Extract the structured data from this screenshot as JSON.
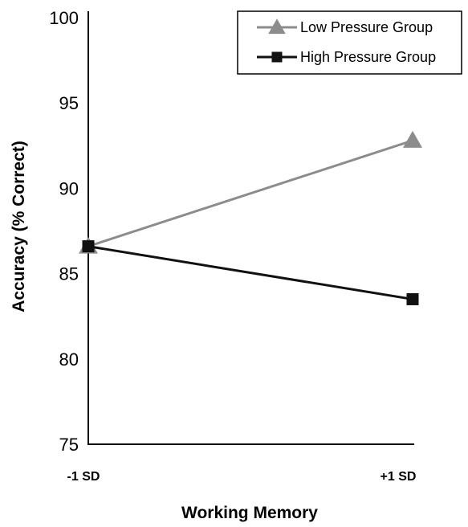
{
  "chart_data": {
    "type": "line",
    "categories": [
      "-1 SD",
      "+1 SD"
    ],
    "series": [
      {
        "name": "Low Pressure Group",
        "values": [
          86.6,
          92.8
        ],
        "color": "#8c8c8c",
        "marker": "triangle"
      },
      {
        "name": "High Pressure Group",
        "values": [
          86.6,
          83.5
        ],
        "color": "#111111",
        "marker": "square"
      }
    ],
    "xlabel": "Working Memory",
    "ylabel": "Accuracy (% Correct)",
    "ylim": [
      75,
      100
    ],
    "yticks": [
      75,
      80,
      85,
      90,
      95,
      100
    ],
    "grid": false,
    "legend_position": "top-right"
  }
}
